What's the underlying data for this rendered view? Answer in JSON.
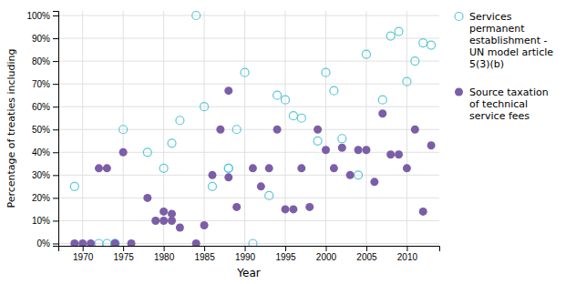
{
  "chart_data": {
    "type": "scatter",
    "x_label": "Year",
    "y_label": "Percentage of treaties including",
    "xlim": [
      1967,
      2014
    ],
    "ylim": [
      -0.01,
      1.02
    ],
    "xticks": [
      1970,
      1975,
      1980,
      1985,
      1990,
      1995,
      2000,
      2005,
      2010
    ],
    "yticks": [
      {
        "value": 0.0,
        "label": "0%"
      },
      {
        "value": 0.1,
        "label": "10%"
      },
      {
        "value": 0.2,
        "label": "20%"
      },
      {
        "value": 0.3,
        "label": "30%"
      },
      {
        "value": 0.4,
        "label": "40%"
      },
      {
        "value": 0.5,
        "label": "50%"
      },
      {
        "value": 0.6,
        "label": "60%"
      },
      {
        "value": 0.7,
        "label": "70%"
      },
      {
        "value": 0.8,
        "label": "80%"
      },
      {
        "value": 0.9,
        "label": "90%"
      },
      {
        "value": 1.0,
        "label": "100%"
      }
    ],
    "grid": true,
    "legend": "right",
    "series": [
      {
        "name": "Services\npermanent\nestablishment -\nUN model article\n5(3)(b)",
        "color": "#5BC8D8",
        "marker": "circle-open",
        "x": [
          1969,
          1972,
          1973,
          1974,
          1974,
          1975,
          1978,
          1980,
          1981,
          1982,
          1984,
          1985,
          1986,
          1988,
          1988,
          1989,
          1990,
          1991,
          1993,
          1994,
          1995,
          1996,
          1997,
          1999,
          2000,
          2001,
          2002,
          2004,
          2005,
          2007,
          2008,
          2009,
          2010,
          2011,
          2012,
          2013
        ],
        "values": [
          0.25,
          0.0,
          0.0,
          0.0,
          0.0,
          0.5,
          0.4,
          0.33,
          0.44,
          0.54,
          1.0,
          0.6,
          0.25,
          0.33,
          0.33,
          0.5,
          0.75,
          0.0,
          0.21,
          0.65,
          0.63,
          0.56,
          0.55,
          0.45,
          0.75,
          0.67,
          0.46,
          0.3,
          0.83,
          0.63,
          0.91,
          0.93,
          0.71,
          0.8,
          0.88,
          0.87
        ]
      },
      {
        "name": "Source taxation\nof technical\nservice fees",
        "color": "#7B5EA7",
        "marker": "circle",
        "x": [
          1969,
          1970,
          1971,
          1972,
          1973,
          1974,
          1975,
          1976,
          1978,
          1979,
          1980,
          1980,
          1981,
          1981,
          1982,
          1984,
          1985,
          1986,
          1987,
          1988,
          1988,
          1989,
          1991,
          1992,
          1993,
          1994,
          1995,
          1996,
          1997,
          1998,
          1999,
          2000,
          2001,
          2002,
          2003,
          2004,
          2005,
          2006,
          2007,
          2008,
          2009,
          2010,
          2011,
          2012,
          2013
        ],
        "values": [
          0.0,
          0.0,
          0.0,
          0.33,
          0.33,
          0.0,
          0.4,
          0.0,
          0.2,
          0.1,
          0.1,
          0.14,
          0.1,
          0.13,
          0.07,
          0.0,
          0.08,
          0.3,
          0.5,
          0.29,
          0.67,
          0.16,
          0.33,
          0.25,
          0.33,
          0.5,
          0.15,
          0.15,
          0.33,
          0.16,
          0.5,
          0.41,
          0.33,
          0.42,
          0.3,
          0.41,
          0.41,
          0.27,
          0.57,
          0.39,
          0.39,
          0.33,
          0.5,
          0.14,
          0.43
        ]
      }
    ]
  }
}
